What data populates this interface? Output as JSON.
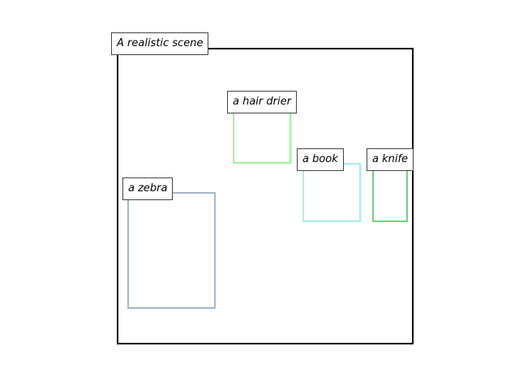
{
  "scene": {
    "title": "A realistic scene"
  },
  "objects": [
    {
      "label": "a hair drier",
      "color": "#9ef59c"
    },
    {
      "label": "a book",
      "color": "#a9eeea"
    },
    {
      "label": "a knife",
      "color": "#6fd47f"
    },
    {
      "label": "a zebra",
      "color": "#a3b7c8"
    }
  ]
}
